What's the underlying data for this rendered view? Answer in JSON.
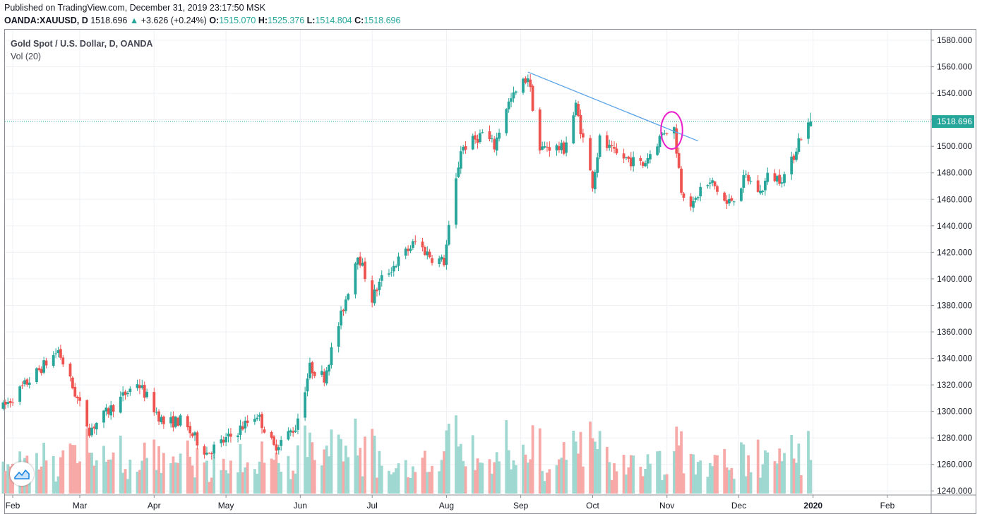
{
  "header": {
    "published": "Published on TradingView.com, December 31, 2019 23:17:50 MSK",
    "symbol": "OANDA:XAUUSD, D",
    "last": "1518.696",
    "change": "+3.626 (+0.24%)",
    "open_label": "O:",
    "open": "1515.070",
    "high_label": "H:",
    "high": "1525.376",
    "low_label": "L:",
    "low": "1514.804",
    "close_label": "C:",
    "close": "1518.696"
  },
  "legend": {
    "title": "Gold Spot / U.S. Dollar, D, OANDA",
    "volume": "Vol (20)"
  },
  "colors": {
    "up": "#26a69a",
    "down": "#ef5350",
    "vol_up": "#9fd8d1",
    "vol_down": "#f7a9a7",
    "trendline": "#5aa3e8",
    "circle": "#e91ec9",
    "price_line": "#26a69a"
  },
  "logo_icon": "tradingview-logo-icon",
  "chart_data": {
    "type": "candlestick",
    "title": "Gold Spot / U.S. Dollar, D, OANDA",
    "y_axis": {
      "ticks": [
        "1580.000",
        "1560.000",
        "1540.000",
        "1520.000",
        "1500.000",
        "1480.000",
        "1460.000",
        "1440.000",
        "1420.000",
        "1400.000",
        "1380.000",
        "1360.000",
        "1340.000",
        "1320.000",
        "1300.000",
        "1280.000",
        "1260.000",
        "1240.000"
      ],
      "range": [
        1238,
        1588
      ]
    },
    "x_axis": {
      "ticks": [
        "Feb",
        "Mar",
        "Apr",
        "May",
        "Jun",
        "Jul",
        "Aug",
        "Sep",
        "Oct",
        "Nov",
        "Dec",
        "2020",
        "Feb"
      ]
    },
    "last_price": "1518.696",
    "grid": true,
    "volume_indicator": "Vol (20)",
    "anchors": [
      [
        "2019-01-28",
        1303
      ],
      [
        "2019-02-20",
        1346
      ],
      [
        "2019-03-05",
        1286
      ],
      [
        "2019-03-25",
        1322
      ],
      [
        "2019-04-05",
        1291
      ],
      [
        "2019-04-12",
        1293
      ],
      [
        "2019-04-23",
        1269
      ],
      [
        "2019-05-03",
        1281
      ],
      [
        "2019-05-14",
        1298
      ],
      [
        "2019-05-21",
        1273
      ],
      [
        "2019-05-30",
        1288
      ],
      [
        "2019-06-05",
        1333
      ],
      [
        "2019-06-11",
        1326
      ],
      [
        "2019-06-20",
        1385
      ],
      [
        "2019-06-25",
        1420
      ],
      [
        "2019-07-01",
        1385
      ],
      [
        "2019-07-05",
        1400
      ],
      [
        "2019-07-11",
        1412
      ],
      [
        "2019-07-19",
        1428
      ],
      [
        "2019-07-26",
        1416
      ],
      [
        "2019-07-31",
        1413
      ],
      [
        "2019-08-07",
        1498
      ],
      [
        "2019-08-13",
        1505
      ],
      [
        "2019-08-16",
        1510
      ],
      [
        "2019-08-21",
        1500
      ],
      [
        "2019-08-26",
        1530
      ],
      [
        "2019-09-04",
        1553
      ],
      [
        "2019-09-09",
        1497
      ],
      [
        "2019-09-12",
        1500
      ],
      [
        "2019-09-19",
        1498
      ],
      [
        "2019-09-24",
        1530
      ],
      [
        "2019-10-01",
        1472
      ],
      [
        "2019-10-04",
        1505
      ],
      [
        "2019-10-10",
        1494
      ],
      [
        "2019-10-16",
        1490
      ],
      [
        "2019-10-22",
        1486
      ],
      [
        "2019-10-31",
        1512
      ],
      [
        "2019-11-04",
        1513
      ],
      [
        "2019-11-07",
        1468
      ],
      [
        "2019-11-12",
        1455
      ],
      [
        "2019-11-15",
        1468
      ],
      [
        "2019-11-20",
        1472
      ],
      [
        "2019-11-26",
        1456
      ],
      [
        "2019-11-29",
        1462
      ],
      [
        "2019-12-04",
        1477
      ],
      [
        "2019-12-10",
        1465
      ],
      [
        "2019-12-13",
        1477
      ],
      [
        "2019-12-18",
        1476
      ],
      [
        "2019-12-20",
        1478
      ],
      [
        "2019-12-23",
        1488
      ],
      [
        "2019-12-26",
        1505
      ],
      [
        "2019-12-31",
        1518.696
      ]
    ],
    "volume": {
      "range": [
        0,
        100
      ],
      "min_level": 8,
      "max_level": 70
    },
    "drawings": [
      {
        "type": "trendline",
        "from": [
          "2019-09-04",
          1556
        ],
        "to": [
          "2019-11-14",
          1504
        ]
      },
      {
        "type": "circle",
        "center": [
          "2019-11-03",
          1512
        ],
        "radius_days": 4.5,
        "radius_price": 14
      }
    ]
  }
}
